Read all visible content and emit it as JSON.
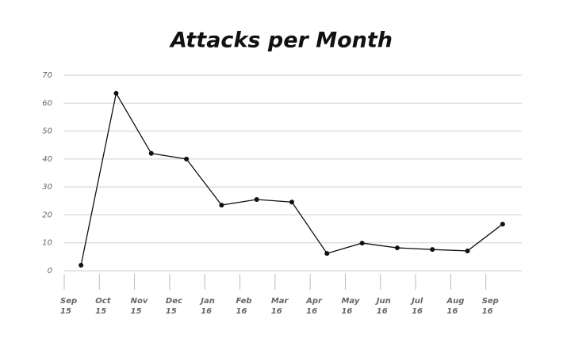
{
  "chart_data": {
    "type": "line",
    "title": "Attacks per Month",
    "categories": [
      "Sep 15",
      "Oct 15",
      "Nov 15",
      "Dec 15",
      "Jan 16",
      "Feb 16",
      "Mar 16",
      "Apr 16",
      "May 16",
      "Jun 16",
      "Jul 16",
      "Aug 16",
      "Sep 16"
    ],
    "values": [
      2,
      63.5,
      42,
      40,
      23.5,
      25.5,
      24.6,
      6.2,
      9.9,
      8.2,
      7.6,
      7.1,
      16.7
    ],
    "color": "#111111",
    "ylim": [
      0,
      70
    ],
    "yticks": [
      0,
      10,
      20,
      30,
      40,
      50,
      60,
      70
    ],
    "grid": true
  }
}
